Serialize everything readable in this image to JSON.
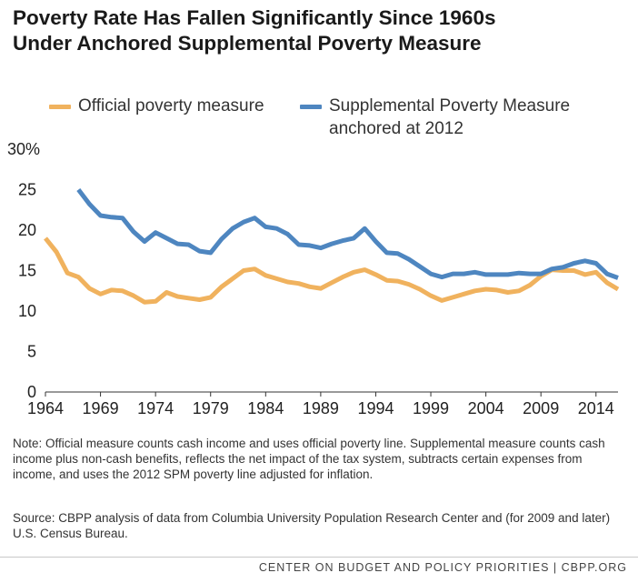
{
  "title_lines": [
    "Poverty Rate Has Fallen Significantly Since 1960s",
    "Under Anchored Supplemental Poverty Measure"
  ],
  "legend": {
    "official": {
      "label": "Official poverty measure",
      "color": "#F0B25E"
    },
    "spm": {
      "label_line1": "Supplemental Poverty Measure",
      "label_line2": "anchored at 2012",
      "color": "#4E86C0"
    }
  },
  "chart_data": {
    "type": "line",
    "title": "",
    "xlabel": "",
    "ylabel": "",
    "xlim": [
      1964,
      2016
    ],
    "ylim": [
      0,
      30
    ],
    "y_ticks": [
      0,
      5,
      10,
      15,
      20,
      25
    ],
    "y_top_tick_label": "30%",
    "x_ticks": [
      1964,
      1969,
      1974,
      1979,
      1984,
      1989,
      1994,
      1999,
      2004,
      2009,
      2014
    ],
    "grid": false,
    "legend_position": "top",
    "series": [
      {
        "name": "Official poverty measure",
        "color": "#F0B25E",
        "x": [
          1964,
          1965,
          1966,
          1967,
          1968,
          1969,
          1970,
          1971,
          1972,
          1973,
          1974,
          1975,
          1976,
          1977,
          1978,
          1979,
          1980,
          1981,
          1982,
          1983,
          1984,
          1985,
          1986,
          1987,
          1988,
          1989,
          1990,
          1991,
          1992,
          1993,
          1994,
          1995,
          1996,
          1997,
          1998,
          1999,
          2000,
          2001,
          2002,
          2003,
          2004,
          2005,
          2006,
          2007,
          2008,
          2009,
          2010,
          2011,
          2012,
          2013,
          2014,
          2015,
          2016
        ],
        "y": [
          19.0,
          17.3,
          14.7,
          14.2,
          12.8,
          12.1,
          12.6,
          12.5,
          11.9,
          11.1,
          11.2,
          12.3,
          11.8,
          11.6,
          11.4,
          11.7,
          13.0,
          14.0,
          15.0,
          15.2,
          14.4,
          14.0,
          13.6,
          13.4,
          13.0,
          12.8,
          13.5,
          14.2,
          14.8,
          15.1,
          14.5,
          13.8,
          13.7,
          13.3,
          12.7,
          11.9,
          11.3,
          11.7,
          12.1,
          12.5,
          12.7,
          12.6,
          12.3,
          12.5,
          13.2,
          14.3,
          15.1,
          15.0,
          15.0,
          14.5,
          14.8,
          13.5,
          12.7
        ]
      },
      {
        "name": "Supplemental Poverty Measure anchored at 2012",
        "color": "#4E86C0",
        "x": [
          1967,
          1968,
          1969,
          1970,
          1971,
          1972,
          1973,
          1974,
          1975,
          1976,
          1977,
          1978,
          1979,
          1980,
          1981,
          1982,
          1983,
          1984,
          1985,
          1986,
          1987,
          1988,
          1989,
          1990,
          1991,
          1992,
          1993,
          1994,
          1995,
          1996,
          1997,
          1998,
          1999,
          2000,
          2001,
          2002,
          2003,
          2004,
          2005,
          2006,
          2007,
          2008,
          2009,
          2010,
          2011,
          2012,
          2013,
          2014,
          2015,
          2016
        ],
        "y": [
          25.0,
          23.2,
          21.8,
          21.6,
          21.5,
          19.8,
          18.6,
          19.7,
          19.0,
          18.3,
          18.2,
          17.4,
          17.2,
          18.9,
          20.2,
          21.0,
          21.5,
          20.4,
          20.2,
          19.5,
          18.2,
          18.1,
          17.8,
          18.3,
          18.7,
          19.0,
          20.2,
          18.6,
          17.2,
          17.1,
          16.4,
          15.5,
          14.6,
          14.2,
          14.6,
          14.6,
          14.8,
          14.5,
          14.5,
          14.5,
          14.7,
          14.6,
          14.6,
          15.2,
          15.4,
          15.9,
          16.2,
          15.9,
          14.6,
          14.1
        ]
      }
    ]
  },
  "note": "Note: Official measure counts cash income and uses official poverty line. Supplemental measure counts cash income plus non-cash benefits, reflects the net impact of the tax system, subtracts certain expenses from income, and uses the 2012 SPM poverty line adjusted for inflation.",
  "source": "Source: CBPP analysis of data from Columbia University Population Research Center and (for 2009 and later) U.S. Census Bureau.",
  "footer": "CENTER ON BUDGET AND POLICY PRIORITIES | CBPP.ORG"
}
